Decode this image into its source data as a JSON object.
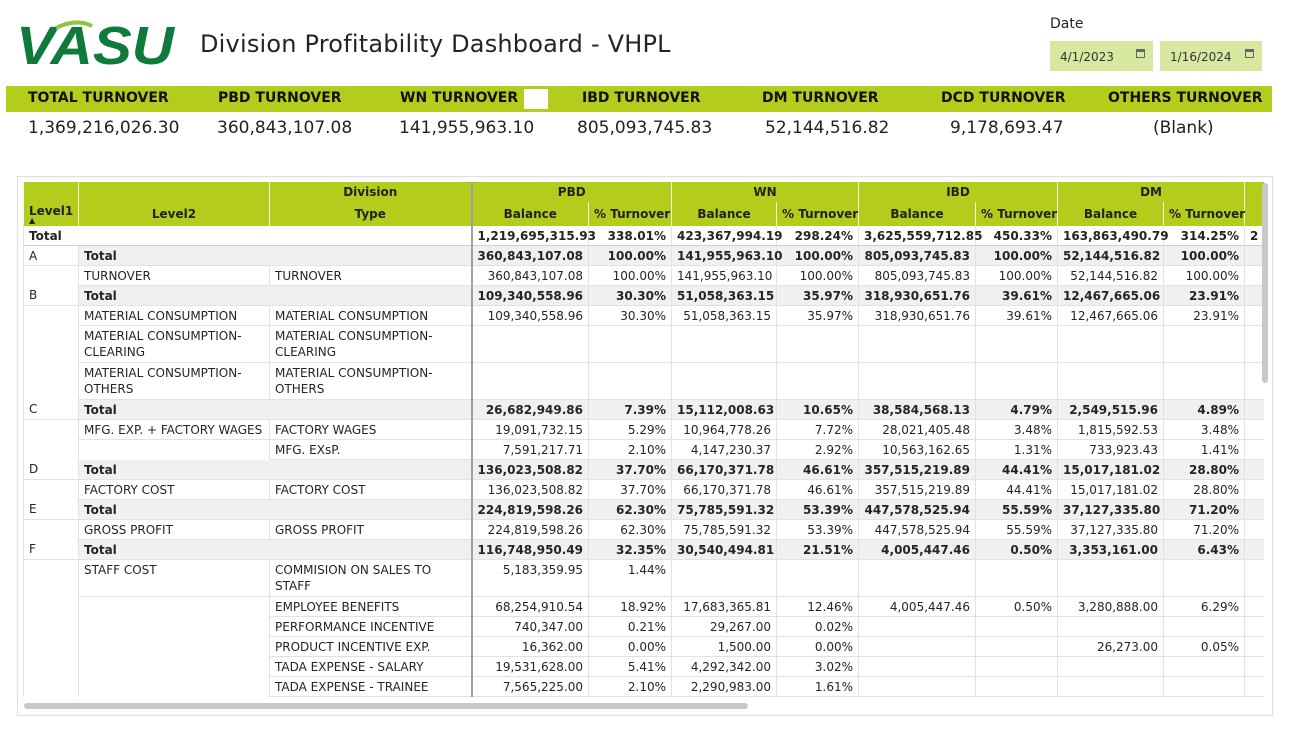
{
  "header": {
    "logo_text": "VASU",
    "title": "Division Profitability Dashboard - VHPL",
    "date_label": "Date",
    "date_from": "4/1/2023",
    "date_to": "1/16/2024"
  },
  "colors": {
    "accent": "#b4cd1d",
    "logo_green": "#0f7a3c",
    "date_box": "#d9e8a0"
  },
  "kpis": [
    {
      "label": "TOTAL TURNOVER",
      "value": "1,369,216,026.30"
    },
    {
      "label": "PBD TURNOVER",
      "value": "360,843,107.08"
    },
    {
      "label": "WN TURNOVER",
      "value": "141,955,963.10"
    },
    {
      "label": "IBD TURNOVER",
      "value": "805,093,745.83"
    },
    {
      "label": "DM TURNOVER",
      "value": "52,144,516.82"
    },
    {
      "label": "DCD TURNOVER",
      "value": "9,178,693.47"
    },
    {
      "label": "OTHERS TURNOVER",
      "value": "(Blank)"
    }
  ],
  "matrix": {
    "header_top": {
      "division": "Division",
      "pbd": "PBD",
      "wn": "WN",
      "ibd": "IBD",
      "dm": "DM"
    },
    "header_bottom": {
      "level1": "Level1",
      "level2": "Level2",
      "type": "Type",
      "balance": "Balance",
      "pct": "% Turnover"
    },
    "grand_total": {
      "label": "Total",
      "values": [
        "1,219,695,315.93",
        "338.01%",
        "423,367,994.19",
        "298.24%",
        "3,625,559,712.85",
        "450.33%",
        "163,863,490.79",
        "314.25%"
      ],
      "overflow": "2"
    },
    "rows": [
      {
        "kind": "tot",
        "l1": "A",
        "l2": "Total",
        "type": "",
        "v": [
          "360,843,107.08",
          "100.00%",
          "141,955,963.10",
          "100.00%",
          "805,093,745.83",
          "100.00%",
          "52,144,516.82",
          "100.00%"
        ]
      },
      {
        "kind": "row",
        "l1": "",
        "l2": "TURNOVER",
        "type": "TURNOVER",
        "v": [
          "360,843,107.08",
          "100.00%",
          "141,955,963.10",
          "100.00%",
          "805,093,745.83",
          "100.00%",
          "52,144,516.82",
          "100.00%"
        ]
      },
      {
        "kind": "tot",
        "l1": "B",
        "l2": "Total",
        "type": "",
        "v": [
          "109,340,558.96",
          "30.30%",
          "51,058,363.15",
          "35.97%",
          "318,930,651.76",
          "39.61%",
          "12,467,665.06",
          "23.91%"
        ]
      },
      {
        "kind": "row",
        "l1": "",
        "l2": "MATERIAL CONSUMPTION",
        "type": "MATERIAL CONSUMPTION",
        "v": [
          "109,340,558.96",
          "30.30%",
          "51,058,363.15",
          "35.97%",
          "318,930,651.76",
          "39.61%",
          "12,467,665.06",
          "23.91%"
        ]
      },
      {
        "kind": "tall",
        "l1": "",
        "l2": "MATERIAL CONSUMPTION-CLEARING",
        "type": "MATERIAL CONSUMPTION-CLEARING",
        "v": [
          "",
          "",
          "",
          "",
          "",
          "",
          "",
          ""
        ]
      },
      {
        "kind": "tall",
        "l1": "",
        "l2": "MATERIAL CONSUMPTION-OTHERS",
        "type": "MATERIAL CONSUMPTION-OTHERS",
        "v": [
          "",
          "",
          "",
          "",
          "",
          "",
          "",
          ""
        ]
      },
      {
        "kind": "tot",
        "l1": "C",
        "l2": "Total",
        "type": "",
        "v": [
          "26,682,949.86",
          "7.39%",
          "15,112,008.63",
          "10.65%",
          "38,584,568.13",
          "4.79%",
          "2,549,515.96",
          "4.89%"
        ]
      },
      {
        "kind": "row",
        "l1": "",
        "l2": "MFG. EXP. + FACTORY WAGES",
        "type": "FACTORY WAGES",
        "v": [
          "19,091,732.15",
          "5.29%",
          "10,964,778.26",
          "7.72%",
          "28,021,405.48",
          "3.48%",
          "1,815,592.53",
          "3.48%"
        ]
      },
      {
        "kind": "row",
        "l1": "",
        "l2": "",
        "type": "MFG. EXsP.",
        "v": [
          "7,591,217.71",
          "2.10%",
          "4,147,230.37",
          "2.92%",
          "10,563,162.65",
          "1.31%",
          "733,923.43",
          "1.41%"
        ]
      },
      {
        "kind": "tot",
        "l1": "D",
        "l2": "Total",
        "type": "",
        "v": [
          "136,023,508.82",
          "37.70%",
          "66,170,371.78",
          "46.61%",
          "357,515,219.89",
          "44.41%",
          "15,017,181.02",
          "28.80%"
        ]
      },
      {
        "kind": "row",
        "l1": "",
        "l2": "FACTORY COST",
        "type": "FACTORY COST",
        "v": [
          "136,023,508.82",
          "37.70%",
          "66,170,371.78",
          "46.61%",
          "357,515,219.89",
          "44.41%",
          "15,017,181.02",
          "28.80%"
        ]
      },
      {
        "kind": "tot",
        "l1": "E",
        "l2": "Total",
        "type": "",
        "v": [
          "224,819,598.26",
          "62.30%",
          "75,785,591.32",
          "53.39%",
          "447,578,525.94",
          "55.59%",
          "37,127,335.80",
          "71.20%"
        ]
      },
      {
        "kind": "row",
        "l1": "",
        "l2": "GROSS PROFIT",
        "type": "GROSS PROFIT",
        "v": [
          "224,819,598.26",
          "62.30%",
          "75,785,591.32",
          "53.39%",
          "447,578,525.94",
          "55.59%",
          "37,127,335.80",
          "71.20%"
        ]
      },
      {
        "kind": "tot",
        "l1": "F",
        "l2": "Total",
        "type": "",
        "v": [
          "116,748,950.49",
          "32.35%",
          "30,540,494.81",
          "21.51%",
          "4,005,447.46",
          "0.50%",
          "3,353,161.00",
          "6.43%"
        ]
      },
      {
        "kind": "tall",
        "l1": "",
        "l2": "STAFF COST",
        "type": "COMMISION ON SALES TO STAFF",
        "v": [
          "5,183,359.95",
          "1.44%",
          "",
          "",
          "",
          "",
          "",
          ""
        ]
      },
      {
        "kind": "row",
        "l1": "",
        "l2": "",
        "type": "EMPLOYEE BENEFITS",
        "v": [
          "68,254,910.54",
          "18.92%",
          "17,683,365.81",
          "12.46%",
          "4,005,447.46",
          "0.50%",
          "3,280,888.00",
          "6.29%"
        ]
      },
      {
        "kind": "row",
        "l1": "",
        "l2": "",
        "type": "PERFORMANCE INCENTIVE",
        "v": [
          "740,347.00",
          "0.21%",
          "29,267.00",
          "0.02%",
          "",
          "",
          "",
          ""
        ]
      },
      {
        "kind": "row",
        "l1": "",
        "l2": "",
        "type": "PRODUCT INCENTIVE EXP.",
        "v": [
          "16,362.00",
          "0.00%",
          "1,500.00",
          "0.00%",
          "",
          "",
          "26,273.00",
          "0.05%"
        ]
      },
      {
        "kind": "row",
        "l1": "",
        "l2": "",
        "type": "TADA EXPENSE - SALARY",
        "v": [
          "19,531,628.00",
          "5.41%",
          "4,292,342.00",
          "3.02%",
          "",
          "",
          "",
          ""
        ]
      },
      {
        "kind": "row",
        "l1": "",
        "l2": "",
        "type": "TADA EXPENSE - TRAINEE",
        "v": [
          "7,565,225.00",
          "2.10%",
          "2,290,983.00",
          "1.61%",
          "",
          "",
          "",
          ""
        ]
      }
    ]
  }
}
